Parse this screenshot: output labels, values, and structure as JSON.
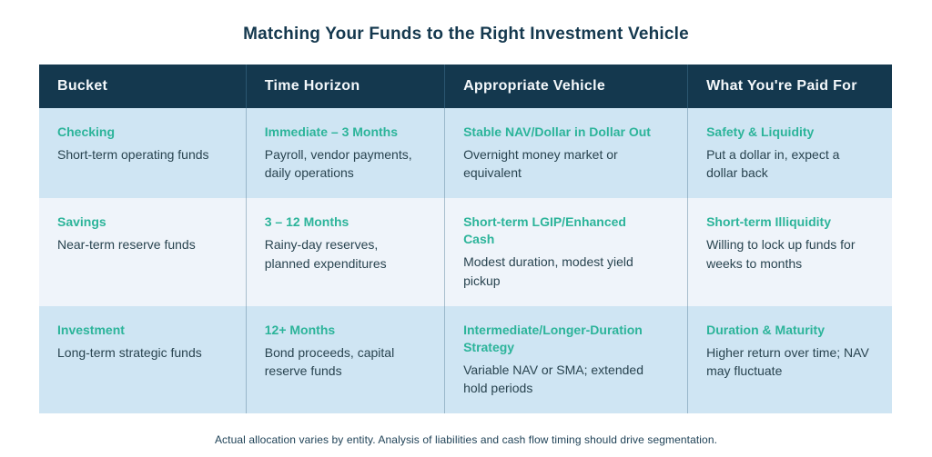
{
  "title": "Matching Your Funds to the Right Investment Vehicle",
  "colors": {
    "header_bg": "#14384e",
    "row_light_blue": "#cfe5f3",
    "row_pale_blue": "#eff4fa",
    "accent_teal": "#2cb49a",
    "text_navy": "#1f3d4d"
  },
  "table": {
    "headers": [
      "Bucket",
      "Time Horizon",
      "Appropriate Vehicle",
      "What You're Paid For"
    ],
    "rows": [
      {
        "cells": [
          {
            "heading": "Checking",
            "body": "Short-term operating funds"
          },
          {
            "heading": "Immediate – 3 Months",
            "body": "Payroll, vendor payments, daily operations"
          },
          {
            "heading": "Stable NAV/Dollar in Dollar Out",
            "body": "Overnight money market or equivalent"
          },
          {
            "heading": "Safety & Liquidity",
            "body": "Put a dollar in, expect a dollar back"
          }
        ]
      },
      {
        "cells": [
          {
            "heading": "Savings",
            "body": "Near-term reserve funds"
          },
          {
            "heading": "3 – 12 Months",
            "body": "Rainy-day reserves, planned expenditures"
          },
          {
            "heading": "Short-term LGIP/Enhanced Cash",
            "body": "Modest duration, modest yield pickup"
          },
          {
            "heading": "Short-term Illiquidity",
            "body": "Willing to lock up funds for weeks to months"
          }
        ]
      },
      {
        "cells": [
          {
            "heading": "Investment",
            "body": "Long-term strategic funds"
          },
          {
            "heading": "12+ Months",
            "body": "Bond proceeds, capital reserve funds"
          },
          {
            "heading": "Intermediate/Longer-Duration Strategy",
            "body": "Variable NAV or SMA; extended hold periods"
          },
          {
            "heading": "Duration & Maturity",
            "body": "Higher return over time; NAV may fluctuate"
          }
        ]
      }
    ]
  },
  "footnote": "Actual allocation varies by entity. Analysis of liabilities and cash flow timing should drive segmentation."
}
